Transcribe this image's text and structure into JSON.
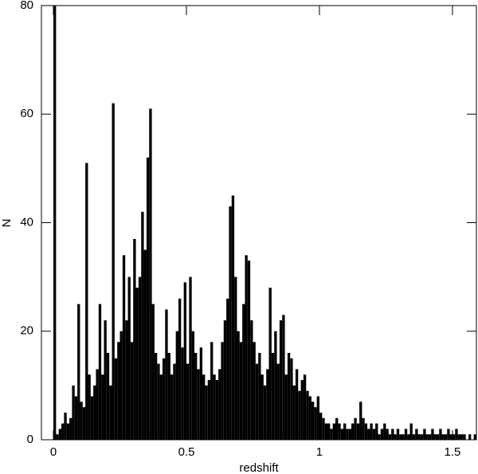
{
  "chart_data": {
    "type": "histogram",
    "xlabel": "redshift",
    "ylabel": "N",
    "color": "#000000",
    "bins": [
      0,
      0.01,
      0.02,
      0.03,
      0.04,
      0.05,
      0.06,
      0.07,
      0.08,
      0.09,
      0.1,
      0.11,
      0.12,
      0.13,
      0.14,
      0.15,
      0.16,
      0.17,
      0.18,
      0.19,
      0.2,
      0.21,
      0.22,
      0.23,
      0.24,
      0.25,
      0.26,
      0.27,
      0.28,
      0.29,
      0.3,
      0.31,
      0.32,
      0.33,
      0.34,
      0.35,
      0.36,
      0.37,
      0.38,
      0.39,
      0.4,
      0.41,
      0.42,
      0.43,
      0.44,
      0.45,
      0.46,
      0.47,
      0.48,
      0.49,
      0.5,
      0.51,
      0.52,
      0.53,
      0.54,
      0.55,
      0.56,
      0.57,
      0.58,
      0.59,
      0.6,
      0.61,
      0.62,
      0.63,
      0.64,
      0.65,
      0.66,
      0.67,
      0.68,
      0.69,
      0.7,
      0.71,
      0.72,
      0.73,
      0.74,
      0.75,
      0.76,
      0.77,
      0.78,
      0.79,
      0.8,
      0.81,
      0.82,
      0.83,
      0.84,
      0.85,
      0.86,
      0.87,
      0.88,
      0.89,
      0.9,
      0.91,
      0.92,
      0.93,
      0.94,
      0.95,
      0.96,
      0.97,
      0.98,
      0.99,
      1,
      1.01,
      1.02,
      1.03,
      1.04,
      1.05,
      1.06,
      1.07,
      1.08,
      1.09,
      1.1,
      1.11,
      1.12,
      1.13,
      1.14,
      1.15,
      1.16,
      1.17,
      1.18,
      1.19,
      1.2,
      1.21,
      1.22,
      1.23,
      1.24,
      1.25,
      1.26,
      1.27,
      1.28,
      1.29,
      1.3,
      1.31,
      1.32,
      1.33,
      1.34,
      1.35,
      1.36,
      1.37,
      1.38,
      1.39,
      1.4,
      1.41,
      1.42,
      1.43,
      1.44,
      1.45,
      1.46,
      1.47,
      1.48,
      1.49,
      1.5,
      1.51,
      1.52,
      1.53,
      1.54,
      1.55,
      1.56,
      1.57,
      1.58,
      1.59,
      1.6
    ],
    "values": [
      80,
      1,
      2,
      3,
      5,
      3,
      4,
      10,
      8,
      25,
      7,
      6,
      51,
      12,
      8,
      10,
      13,
      25,
      12,
      22,
      16,
      10,
      62,
      15,
      18,
      20,
      34,
      22,
      30,
      18,
      37,
      28,
      30,
      42,
      35,
      52,
      61,
      25,
      16,
      14,
      12,
      15,
      24,
      16,
      12,
      14,
      20,
      26,
      17,
      29,
      14,
      30,
      20,
      16,
      13,
      17,
      12,
      10,
      11,
      18,
      12,
      11,
      13,
      18,
      22,
      26,
      43,
      45,
      30,
      20,
      18,
      25,
      34,
      33,
      22,
      18,
      14,
      16,
      12,
      10,
      13,
      28,
      16,
      20,
      14,
      22,
      23,
      12,
      16,
      15,
      10,
      13,
      9,
      11,
      12,
      9,
      8,
      7,
      6,
      8,
      5,
      4,
      3,
      3,
      2,
      3,
      4,
      3,
      2,
      3,
      2,
      2,
      3,
      4,
      3,
      7,
      4,
      3,
      2,
      3,
      2,
      3,
      1,
      2,
      3,
      2,
      1,
      2,
      1,
      2,
      1,
      1,
      2,
      1,
      3,
      1,
      2,
      1,
      1,
      2,
      1,
      1,
      2,
      1,
      1,
      2,
      1,
      1,
      2,
      1,
      1,
      2,
      1,
      1,
      1,
      0,
      1,
      0,
      1,
      0
    ],
    "xlim": [
      -0.045,
      1.59
    ],
    "ylim": [
      0,
      80
    ],
    "xticks": [
      0,
      0.5,
      1,
      1.5
    ],
    "yticks": [
      0,
      20,
      40,
      60,
      80
    ]
  }
}
